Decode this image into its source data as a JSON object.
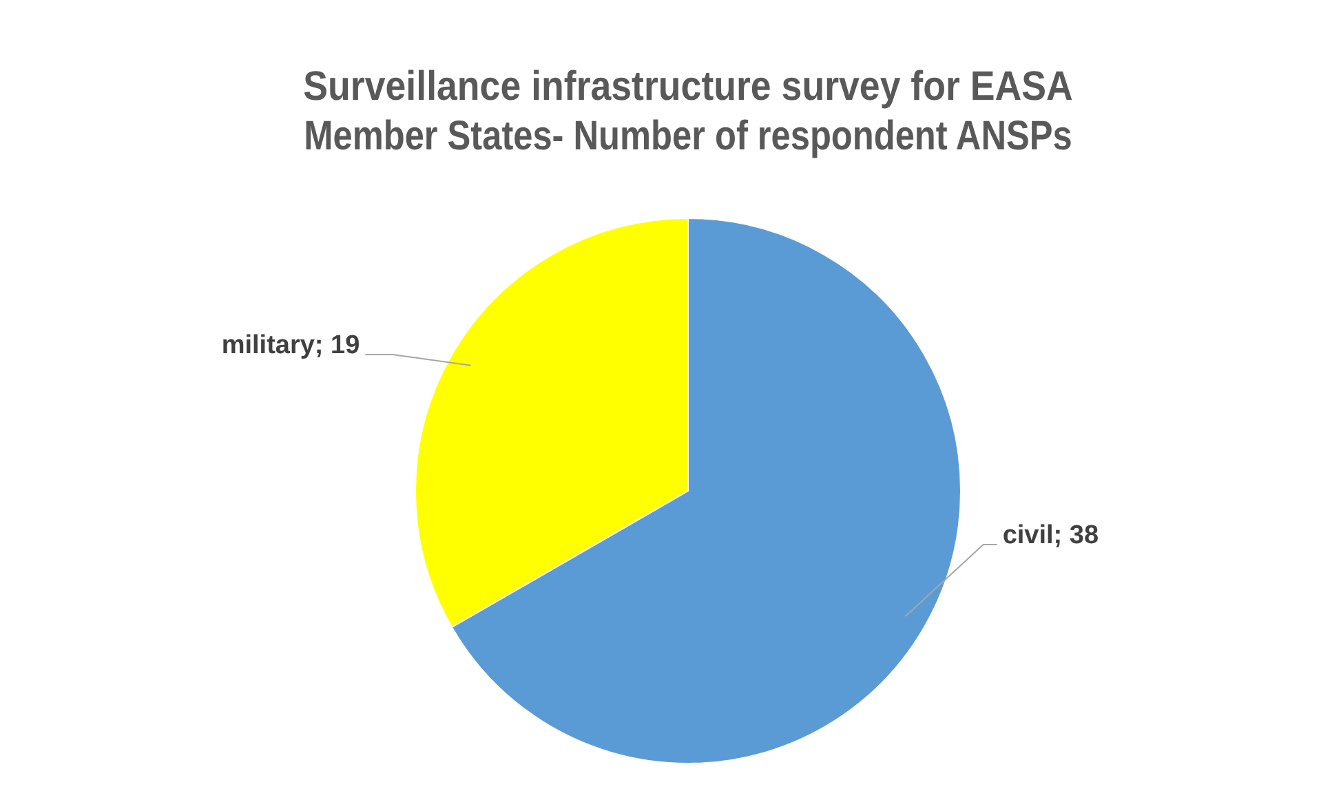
{
  "chart_data": {
    "type": "pie",
    "title": [
      "Surveillance infrastructure survey for EASA",
      "Member States- Number of respondent ANSPs"
    ],
    "categories": [
      "civil",
      "military"
    ],
    "values": [
      38,
      19
    ],
    "colors": [
      "#5b9bd5",
      "#ffff00"
    ],
    "value_labels": [
      "; 38",
      "; 19"
    ],
    "legend": false
  }
}
